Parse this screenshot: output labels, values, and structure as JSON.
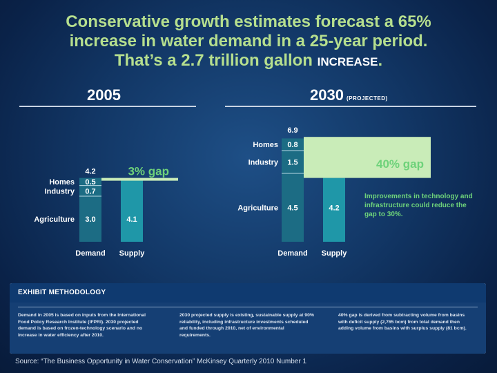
{
  "headline": {
    "line1": "Conservative growth estimates forecast a 65%",
    "line2": "increase in water demand in a 25-year period.",
    "line3_main": "That’s a 2.7 trillion gallon ",
    "line3_small": "INCREASE",
    "line3_end": "."
  },
  "colors": {
    "headline": "#b6df8e",
    "demand_bar": "#1c6c84",
    "supply_bar": "#1f97a8",
    "gap_fill": "#c9ecb8",
    "gap_text": "#6ed27a",
    "background": "#123766"
  },
  "chart_data": [
    {
      "type": "bar",
      "title": "2005",
      "categories": [
        "Demand",
        "Supply"
      ],
      "demand_segments": [
        {
          "label": "Agriculture",
          "value": 3.0,
          "display": "3.0"
        },
        {
          "label": "Industry",
          "value": 0.7,
          "display": "0.7"
        },
        {
          "label": "Homes",
          "value": 0.5,
          "display": "0.5"
        }
      ],
      "demand_total": 4.2,
      "demand_total_display": "4.2",
      "supply": 4.1,
      "supply_display": "4.1",
      "gap_label": "3% gap"
    },
    {
      "type": "bar",
      "title": "2030",
      "subtitle": "(PROJECTED)",
      "categories": [
        "Demand",
        "Supply"
      ],
      "demand_segments": [
        {
          "label": "Agriculture",
          "value": 4.5,
          "display": "4.5"
        },
        {
          "label": "Industry",
          "value": 1.5,
          "display": "1.5"
        },
        {
          "label": "Homes",
          "value": 0.8,
          "display": "0.8"
        }
      ],
      "demand_total": 6.9,
      "demand_total_display": "6.9",
      "supply": 4.2,
      "supply_display": "4.2",
      "gap_label": "40% gap"
    }
  ],
  "note": "Improvements in technology and infrastructure could reduce the gap to 30%.",
  "methodology": {
    "title": "EXHIBIT METHODOLOGY",
    "col1": "Demand in 2005 is based on inputs from the International Food Policy Research Institute (IFPRI). 2030 projected demand is based on frozen-technology scenario and no increase in water efficiency after 2010.",
    "col2": "2030 projected supply is existing, sustainable supply at 90% reliability, including infrastructure investments scheduled and funded through 2010, net of environmental requirements.",
    "col3": "40% gap is derived from subtracting volume from basins with deficit supply (2,765 bcm) from total demand then adding volume from basins with surplus supply (81 bcm)."
  },
  "source": "Source: “The Business Opportunity in Water Conservation” McKinsey Quarterly 2010 Number 1"
}
